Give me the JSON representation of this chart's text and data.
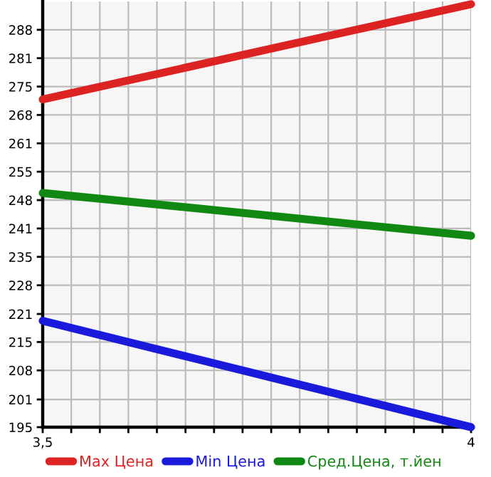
{
  "chart_data": {
    "type": "line",
    "x": [
      3.5,
      4
    ],
    "series": [
      {
        "name": "Max Цена",
        "color": "#dd2222",
        "values": [
          271.7,
          294
        ]
      },
      {
        "name": "Min Цена",
        "color": "#1a1adc",
        "values": [
          219.9,
          195
        ]
      },
      {
        "name": "Сред.Цена, т.йен",
        "color": "#118811",
        "values": [
          249.8,
          239.8
        ]
      }
    ],
    "xlim": [
      3.5,
      4
    ],
    "xticks": [
      {
        "value": 3.5,
        "label": "3,5"
      },
      {
        "value": 3.5333,
        "label": null
      },
      {
        "value": 3.5667,
        "label": null
      },
      {
        "value": 3.6,
        "label": null
      },
      {
        "value": 3.6333,
        "label": null
      },
      {
        "value": 3.6667,
        "label": null
      },
      {
        "value": 3.7,
        "label": null
      },
      {
        "value": 3.7333,
        "label": null
      },
      {
        "value": 3.7667,
        "label": null
      },
      {
        "value": 3.8,
        "label": null
      },
      {
        "value": 3.8333,
        "label": null
      },
      {
        "value": 3.8667,
        "label": null
      },
      {
        "value": 3.9,
        "label": null
      },
      {
        "value": 3.9333,
        "label": null
      },
      {
        "value": 3.9667,
        "label": null
      },
      4
    ],
    "ylim": [
      195,
      294.64
    ],
    "yticks": [
      195,
      {
        "value": 201.49,
        "label": "201"
      },
      {
        "value": 208.29,
        "label": "208"
      },
      {
        "value": 214.93,
        "label": "215"
      },
      {
        "value": 221.49,
        "label": "221"
      },
      {
        "value": 228.21,
        "label": "228"
      },
      {
        "value": 234.86,
        "label": "235"
      },
      {
        "value": 241.5,
        "label": "241"
      },
      {
        "value": 248.14,
        "label": "248"
      },
      {
        "value": 254.79,
        "label": "255"
      },
      {
        "value": 261.43,
        "label": "261"
      },
      {
        "value": 268.07,
        "label": "268"
      },
      {
        "value": 274.71,
        "label": "275"
      },
      {
        "value": 281.36,
        "label": "281"
      },
      288
    ],
    "grid": true,
    "legend": "bottom",
    "marker": "none",
    "line_style": "solid"
  }
}
